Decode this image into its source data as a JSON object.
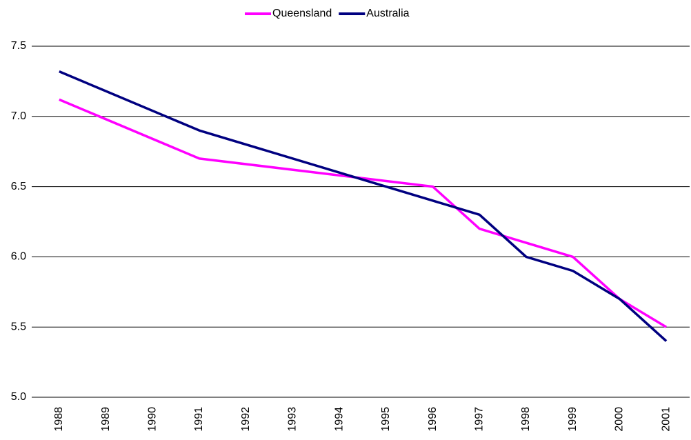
{
  "chart_data": {
    "type": "line",
    "xticks": [
      1988,
      1989,
      1990,
      1991,
      1992,
      1993,
      1994,
      1995,
      1996,
      1997,
      1998,
      1999,
      2000,
      2001
    ],
    "xlim": [
      1987.5,
      2001.5
    ],
    "ylim": [
      5.0,
      7.5
    ],
    "yticks": [
      {
        "value": 5.0,
        "label": "5.0"
      },
      5.5,
      {
        "value": 6.0,
        "label": "6.0"
      },
      6.5,
      {
        "value": 7.0,
        "label": "7.0"
      },
      7.5
    ],
    "grid": true,
    "legend": "top",
    "series": [
      {
        "name": "Queensland",
        "color": "#ff00ff",
        "x": [
          1988,
          1991,
          1996,
          1997,
          1999,
          2000,
          2001
        ],
        "values": [
          7.12,
          6.7,
          6.5,
          6.2,
          6.0,
          5.7,
          5.5
        ]
      },
      {
        "name": "Australia",
        "color": "#000080",
        "x": [
          1988,
          1991,
          1996,
          1997,
          1998,
          1999,
          2000,
          2001
        ],
        "values": [
          7.32,
          6.9,
          6.4,
          6.3,
          6.0,
          5.9,
          5.7,
          5.4
        ]
      }
    ]
  }
}
